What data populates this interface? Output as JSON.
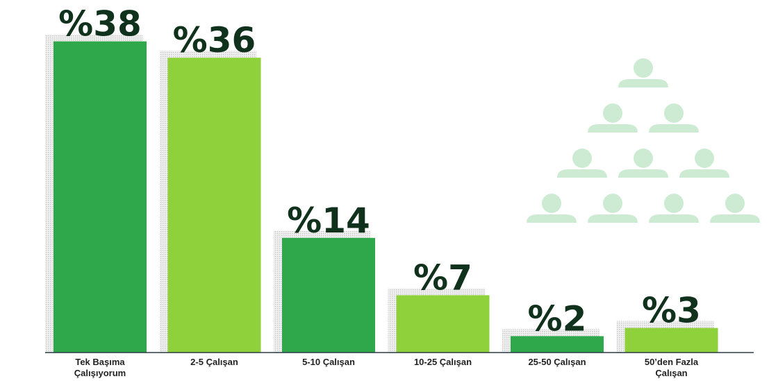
{
  "chart_data": {
    "type": "bar",
    "categories": [
      "Tek Başıma Çalışıyorum",
      "2-5 Çalışan",
      "5-10 Çalışan",
      "10-25 Çalışan",
      "25-50 Çalışan",
      "50’den Fazla Çalışan"
    ],
    "values": [
      38,
      36,
      14,
      7,
      2,
      3
    ],
    "value_labels": [
      "%38",
      "%36",
      "%14",
      "%7",
      "%2",
      "%3"
    ],
    "colors": [
      "#2ea84a",
      "#8fd13a",
      "#2ea84a",
      "#8fd13a",
      "#2ea84a",
      "#8fd13a"
    ]
  }
}
